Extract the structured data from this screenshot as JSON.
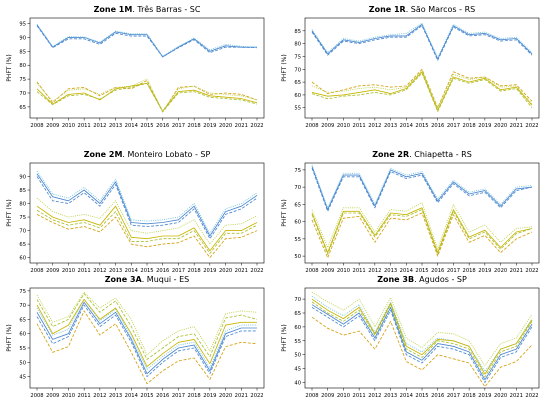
{
  "chart_data": [
    {
      "type": "line",
      "title_bold": "Zone 1M",
      "title_rest": ". Três Barras - SC",
      "ylabel": "PHFT (%)",
      "x": [
        2008,
        2009,
        2010,
        2011,
        2012,
        2013,
        2014,
        2015,
        2016,
        2017,
        2018,
        2019,
        2020,
        2021,
        2022
      ],
      "ylim": [
        61,
        97
      ],
      "yticks": [
        65,
        70,
        75,
        80,
        85,
        90,
        95
      ],
      "series": [
        {
          "color": "#4a86d0",
          "dash": "solid",
          "values": [
            94.5,
            86.5,
            90,
            90,
            88,
            92,
            91,
            91,
            83,
            86.5,
            89.5,
            85,
            87,
            86.5,
            86.5
          ]
        },
        {
          "color": "#4a86d0",
          "dash": "dashed",
          "values": [
            94.2,
            86.3,
            89.5,
            89.5,
            87.5,
            91.5,
            90.5,
            90.5,
            83,
            86.3,
            89.2,
            84.5,
            86.5,
            86.5,
            86.3
          ]
        },
        {
          "color": "#6cc0dc",
          "dash": "dotted",
          "values": [
            94.8,
            86.8,
            90.3,
            90.2,
            88.3,
            92.3,
            91.3,
            91.3,
            83.3,
            86.8,
            89.8,
            85.5,
            87.5,
            86.8,
            86.5
          ]
        },
        {
          "color": "#c8b400",
          "dash": "solid",
          "values": [
            71.5,
            66,
            69.5,
            70,
            67.5,
            71.5,
            72.5,
            73.5,
            63.5,
            70.5,
            71,
            69,
            68.5,
            68,
            66.5
          ]
        },
        {
          "color": "#d4a010",
          "dash": "dashed",
          "values": [
            74,
            66.5,
            71.5,
            72,
            69,
            72,
            71.5,
            74.5,
            63.2,
            72,
            72.5,
            69.5,
            70,
            69.5,
            67.5
          ]
        },
        {
          "color": "#a8c030",
          "dash": "dashed",
          "values": [
            70.5,
            65.8,
            69,
            69.5,
            67.8,
            71,
            72,
            73.5,
            63.2,
            70,
            70.5,
            68.5,
            68,
            67.5,
            66
          ]
        },
        {
          "color": "#b8d040",
          "dash": "dotted",
          "values": [
            73.5,
            67,
            71,
            71.5,
            69.5,
            72,
            72.5,
            75,
            63.5,
            71.5,
            72.5,
            70,
            69.5,
            69,
            67.5
          ]
        }
      ]
    },
    {
      "type": "line",
      "title_bold": "Zone 1R",
      "title_rest": ". São Marcos - RS",
      "ylabel": "PHFT (%)",
      "x": [
        2008,
        2009,
        2010,
        2011,
        2012,
        2013,
        2014,
        2015,
        2016,
        2017,
        2018,
        2019,
        2020,
        2021,
        2022
      ],
      "ylim": [
        51,
        90
      ],
      "yticks": [
        55,
        60,
        65,
        70,
        75,
        80,
        85
      ],
      "series": [
        {
          "color": "#4a86d0",
          "dash": "solid",
          "values": [
            85,
            76,
            81.5,
            80.5,
            82,
            83,
            83,
            87.5,
            74,
            87,
            83.5,
            84,
            81.5,
            82,
            76
          ]
        },
        {
          "color": "#4a86d0",
          "dash": "dashed",
          "values": [
            84.5,
            75.5,
            81,
            80,
            81.5,
            82.5,
            82.5,
            87,
            73.5,
            86.5,
            83,
            83.5,
            81,
            81.5,
            75.5
          ]
        },
        {
          "color": "#6cc0dc",
          "dash": "dotted",
          "values": [
            85.5,
            76.5,
            82,
            81,
            82.5,
            83.5,
            84,
            88,
            74.5,
            87.5,
            84,
            84.5,
            82,
            82.5,
            76.5
          ]
        },
        {
          "color": "#c8b400",
          "dash": "solid",
          "values": [
            61,
            59.5,
            60,
            61,
            62,
            60.5,
            62.5,
            69,
            54,
            67,
            65,
            66.5,
            62,
            63,
            56
          ]
        },
        {
          "color": "#d4a010",
          "dash": "dashed",
          "values": [
            65,
            60.5,
            62,
            63.5,
            64,
            63,
            63.5,
            70,
            55,
            69,
            66.5,
            67,
            63.5,
            64,
            57.5
          ]
        },
        {
          "color": "#a8c030",
          "dash": "dashed",
          "values": [
            60.5,
            58.5,
            59.5,
            60,
            61,
            60,
            62,
            68.5,
            53.5,
            66.5,
            64.5,
            66,
            61.5,
            62.5,
            55
          ]
        },
        {
          "color": "#b8d040",
          "dash": "dotted",
          "values": [
            63.5,
            61,
            61.5,
            62.5,
            63,
            62,
            63,
            69.5,
            55,
            68,
            66,
            67,
            63,
            63.5,
            56.5
          ]
        }
      ]
    },
    {
      "type": "line",
      "title_bold": "Zone 2M",
      "title_rest": ". Monteiro Lobato - SP",
      "ylabel": "PHFT (%)",
      "x": [
        2008,
        2009,
        2010,
        2011,
        2012,
        2013,
        2014,
        2015,
        2016,
        2017,
        2018,
        2019,
        2020,
        2021,
        2022
      ],
      "ylim": [
        58,
        95
      ],
      "yticks": [
        60,
        65,
        70,
        75,
        80,
        85,
        90
      ],
      "series": [
        {
          "color": "#4a86d0",
          "dash": "solid",
          "values": [
            91,
            82.5,
            81,
            85,
            80,
            88,
            73,
            72.5,
            73,
            74,
            79,
            68,
            77,
            79,
            83
          ]
        },
        {
          "color": "#4a86d0",
          "dash": "dashed",
          "values": [
            90,
            81,
            80,
            84,
            79,
            87,
            72,
            71.5,
            72,
            73,
            78,
            67,
            76,
            78,
            82
          ]
        },
        {
          "color": "#6cc0dc",
          "dash": "dotted",
          "values": [
            92,
            83.5,
            82,
            86,
            81,
            89,
            74,
            73.5,
            74,
            75,
            80,
            69,
            78,
            80,
            84
          ]
        },
        {
          "color": "#c8b400",
          "dash": "solid",
          "values": [
            79,
            75,
            73,
            74,
            72,
            79,
            67.5,
            67,
            68,
            68,
            71,
            62.5,
            70,
            70,
            73
          ]
        },
        {
          "color": "#d4a010",
          "dash": "dashed",
          "values": [
            76,
            73,
            70.5,
            71.5,
            69.5,
            75,
            65,
            64,
            65,
            65.5,
            68,
            60,
            67,
            67.5,
            70
          ]
        },
        {
          "color": "#a8c030",
          "dash": "dashed",
          "values": [
            77.5,
            74,
            72,
            73,
            71,
            77,
            66,
            66,
            67,
            67,
            70,
            61.5,
            69,
            69,
            72
          ]
        },
        {
          "color": "#b8d040",
          "dash": "dotted",
          "values": [
            82,
            77,
            75,
            76,
            74.5,
            81,
            70,
            69,
            70,
            71,
            74,
            65,
            72,
            72.5,
            75.5
          ]
        }
      ]
    },
    {
      "type": "line",
      "title_bold": "Zone 2R",
      "title_rest": ". Chiapetta - RS",
      "ylabel": "PHFT (%)",
      "x": [
        2008,
        2009,
        2010,
        2011,
        2012,
        2013,
        2014,
        2015,
        2016,
        2017,
        2018,
        2019,
        2020,
        2021,
        2022
      ],
      "ylim": [
        48,
        77
      ],
      "yticks": [
        50,
        55,
        60,
        65,
        70,
        75
      ],
      "series": [
        {
          "color": "#4a86d0",
          "dash": "solid",
          "values": [
            76,
            63.5,
            73.5,
            73.5,
            64.5,
            75,
            73,
            74,
            66,
            71.5,
            68,
            69,
            64.5,
            69.5,
            70
          ]
        },
        {
          "color": "#4a86d0",
          "dash": "dashed",
          "values": [
            75.5,
            63,
            73,
            73,
            64,
            74.5,
            72.5,
            73.5,
            65.5,
            71,
            67.5,
            68.5,
            64,
            69,
            70
          ]
        },
        {
          "color": "#6cc0dc",
          "dash": "dotted",
          "values": [
            76.5,
            64,
            74,
            74,
            65,
            75.5,
            73.5,
            74.5,
            66.5,
            72,
            68.5,
            69.5,
            65,
            70,
            70.5
          ]
        },
        {
          "color": "#c8b400",
          "dash": "solid",
          "values": [
            62.5,
            51,
            63,
            63,
            56,
            62.5,
            62,
            64,
            51,
            63.5,
            55.5,
            57.5,
            52.5,
            57,
            58
          ]
        },
        {
          "color": "#d4a010",
          "dash": "dashed",
          "values": [
            60.5,
            49.5,
            61,
            61.5,
            54,
            61,
            60.5,
            62.5,
            50,
            62,
            54,
            56,
            51,
            55,
            57
          ]
        },
        {
          "color": "#a8c030",
          "dash": "dashed",
          "values": [
            62,
            50.5,
            62.5,
            62.5,
            55.5,
            62,
            61.5,
            63.5,
            50.5,
            63,
            55,
            57,
            52,
            56.5,
            58
          ]
        },
        {
          "color": "#b8d040",
          "dash": "dotted",
          "values": [
            63.5,
            52.5,
            64,
            64,
            57,
            63.5,
            63,
            65.5,
            52,
            65,
            57,
            59,
            54,
            58,
            58.5
          ]
        }
      ]
    },
    {
      "type": "line",
      "title_bold": "Zone 3A",
      "title_rest": ". Muqui - ES",
      "ylabel": "PHFT (%)",
      "x": [
        2008,
        2009,
        2010,
        2011,
        2012,
        2013,
        2014,
        2015,
        2016,
        2017,
        2018,
        2019,
        2020,
        2021,
        2022
      ],
      "ylim": [
        41,
        76
      ],
      "yticks": [
        45,
        50,
        55,
        60,
        65,
        70,
        75
      ],
      "series": [
        {
          "color": "#4a86d0",
          "dash": "solid",
          "values": [
            67.5,
            58,
            60,
            71,
            63.5,
            67.5,
            58,
            46,
            51,
            55,
            56,
            47,
            60,
            62,
            62
          ]
        },
        {
          "color": "#4a86d0",
          "dash": "dashed",
          "values": [
            66,
            56.5,
            59,
            70,
            62.5,
            66.5,
            57,
            45,
            50,
            54,
            55,
            46,
            59,
            61,
            61
          ]
        },
        {
          "color": "#6cc0dc",
          "dash": "dotted",
          "values": [
            69,
            59.5,
            61.5,
            72,
            64.5,
            68.5,
            59,
            47.5,
            52,
            56,
            57,
            48,
            61,
            63,
            63
          ]
        },
        {
          "color": "#c8b400",
          "dash": "solid",
          "values": [
            70,
            60,
            63,
            72,
            65,
            69,
            60,
            48.5,
            53,
            57,
            58,
            49.5,
            63,
            64,
            64
          ]
        },
        {
          "color": "#d4a010",
          "dash": "dashed",
          "values": [
            63.5,
            53.5,
            55.5,
            68,
            59.5,
            63.5,
            53.5,
            42.5,
            47,
            50.5,
            51.5,
            44,
            55.5,
            57,
            56.5
          ]
        },
        {
          "color": "#a8c030",
          "dash": "dashed",
          "values": [
            72,
            62.5,
            65,
            74,
            67.5,
            71.5,
            62.5,
            51,
            55,
            59,
            60,
            52,
            65.5,
            66.5,
            65
          ]
        },
        {
          "color": "#b8d040",
          "dash": "dotted",
          "values": [
            73.5,
            64,
            66,
            74.5,
            69,
            72.5,
            65,
            52.5,
            57.5,
            61,
            62.5,
            54,
            67,
            68,
            67.5
          ]
        }
      ]
    },
    {
      "type": "line",
      "title_bold": "Zone 3B",
      "title_rest": ". Agudos - SP",
      "ylabel": "PHFT (%)",
      "x": [
        2008,
        2009,
        2010,
        2011,
        2012,
        2013,
        2014,
        2015,
        2016,
        2017,
        2018,
        2019,
        2020,
        2021,
        2022
      ],
      "ylim": [
        38,
        74
      ],
      "yticks": [
        40,
        45,
        50,
        55,
        60,
        65,
        70
      ],
      "series": [
        {
          "color": "#4a86d0",
          "dash": "solid",
          "values": [
            68,
            64.5,
            61,
            65,
            56,
            67,
            51,
            48,
            54,
            53,
            51,
            41,
            50,
            52,
            61
          ]
        },
        {
          "color": "#4a86d0",
          "dash": "dashed",
          "values": [
            67,
            63.5,
            60,
            64,
            55,
            66,
            50,
            47,
            53,
            52,
            50,
            40,
            49,
            51,
            60
          ]
        },
        {
          "color": "#6cc0dc",
          "dash": "dotted",
          "values": [
            71,
            67,
            64,
            68,
            58,
            69,
            54,
            51,
            56,
            55,
            53,
            44,
            52,
            54,
            63
          ]
        },
        {
          "color": "#c8b400",
          "dash": "solid",
          "values": [
            70,
            66,
            63,
            67,
            57.5,
            68.5,
            53,
            50,
            55.5,
            55,
            53,
            43,
            52,
            54,
            62.5
          ]
        },
        {
          "color": "#d4a010",
          "dash": "dashed",
          "values": [
            63.5,
            59.5,
            57,
            58.5,
            52,
            62,
            47.5,
            44.5,
            50,
            48.5,
            47,
            38.5,
            45.5,
            47.5,
            53.5
          ]
        },
        {
          "color": "#a8c030",
          "dash": "dashed",
          "values": [
            69,
            65,
            62,
            66,
            57,
            68,
            52,
            49,
            55,
            54,
            52,
            42,
            51,
            53,
            62
          ]
        },
        {
          "color": "#b8d040",
          "dash": "dotted",
          "values": [
            72.5,
            69,
            66,
            70,
            60,
            70.5,
            56,
            52.5,
            58,
            57.5,
            55,
            46,
            54,
            56,
            64.5
          ]
        }
      ]
    }
  ]
}
